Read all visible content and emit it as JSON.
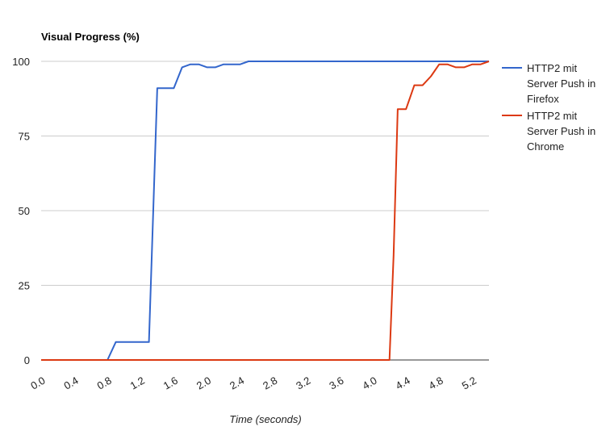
{
  "chart_data": {
    "type": "line",
    "title": "Visual Progress (%)",
    "xlabel": "Time (seconds)",
    "ylabel": "Visual Progress (%)",
    "xlim": [
      0,
      5.4
    ],
    "ylim": [
      0,
      100
    ],
    "x_ticks": [
      "0.0",
      "0.4",
      "0.8",
      "1.2",
      "1.6",
      "2.0",
      "2.4",
      "2.8",
      "3.2",
      "3.6",
      "4.0",
      "4.4",
      "4.8",
      "5.2"
    ],
    "y_ticks": [
      "0",
      "25",
      "50",
      "75",
      "100"
    ],
    "grid": true,
    "legend_position": "right",
    "series": [
      {
        "name": "HTTP2 mit Server Push in Firefox",
        "color": "#3366cc",
        "points": [
          [
            0.0,
            0
          ],
          [
            0.8,
            0
          ],
          [
            0.9,
            6
          ],
          [
            1.3,
            6
          ],
          [
            1.4,
            91
          ],
          [
            1.6,
            91
          ],
          [
            1.7,
            98
          ],
          [
            1.8,
            99
          ],
          [
            1.9,
            99
          ],
          [
            2.0,
            98
          ],
          [
            2.1,
            98
          ],
          [
            2.2,
            99
          ],
          [
            2.4,
            99
          ],
          [
            2.5,
            100
          ],
          [
            5.4,
            100
          ]
        ]
      },
      {
        "name": "HTTP2 mit Server Push in Chrome",
        "color": "#dc3912",
        "points": [
          [
            0.0,
            0
          ],
          [
            4.2,
            0
          ],
          [
            4.25,
            35
          ],
          [
            4.3,
            84
          ],
          [
            4.4,
            84
          ],
          [
            4.5,
            92
          ],
          [
            4.6,
            92
          ],
          [
            4.7,
            95
          ],
          [
            4.8,
            99
          ],
          [
            4.9,
            99
          ],
          [
            5.0,
            98
          ],
          [
            5.1,
            98
          ],
          [
            5.2,
            99
          ],
          [
            5.3,
            99
          ],
          [
            5.4,
            100
          ]
        ]
      }
    ],
    "legend_lines": [
      [
        "HTTP2 mit",
        "Server Push in",
        "Firefox"
      ],
      [
        "HTTP2 mit",
        "Server Push in",
        "Chrome"
      ]
    ]
  }
}
